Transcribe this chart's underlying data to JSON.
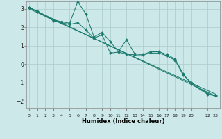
{
  "title": "",
  "xlabel": "Humidex (Indice chaleur)",
  "bg_color": "#cce8e8",
  "line_color": "#1a7a6e",
  "grid_color": "#aacccc",
  "x_tick_labels": [
    "0",
    "1",
    "2",
    "3",
    "4",
    "5",
    "6",
    "7",
    "8",
    "9",
    "10",
    "11",
    "12",
    "13",
    "14",
    "15",
    "16",
    "17",
    "18",
    "19",
    "20",
    "",
    "22",
    "23"
  ],
  "ylim": [
    -2.4,
    3.4
  ],
  "xlim": [
    -0.3,
    23.5
  ],
  "yticks": [
    -2,
    -1,
    0,
    1,
    2,
    3
  ],
  "line1_x": [
    0,
    1,
    3,
    4,
    5,
    6,
    7,
    8,
    9,
    10,
    11,
    12,
    13,
    14,
    15,
    16,
    17,
    18,
    19,
    20,
    22,
    23
  ],
  "line1_y": [
    3.07,
    2.87,
    2.4,
    2.3,
    2.22,
    3.38,
    2.72,
    1.47,
    1.72,
    1.22,
    0.67,
    1.32,
    0.57,
    0.52,
    0.67,
    0.67,
    0.52,
    0.27,
    -0.53,
    -1.08,
    -1.63,
    -1.73
  ],
  "line2_x": [
    0,
    1,
    3,
    4,
    5,
    6,
    7,
    8,
    9,
    10,
    11,
    12,
    13,
    14,
    15,
    16,
    17,
    18,
    19,
    20,
    22,
    23
  ],
  "line2_y": [
    3.05,
    2.85,
    2.35,
    2.25,
    2.15,
    2.25,
    1.85,
    1.4,
    1.6,
    0.6,
    0.65,
    0.55,
    0.5,
    0.5,
    0.6,
    0.6,
    0.45,
    0.2,
    -0.6,
    -1.0,
    -1.6,
    -1.7
  ],
  "trend1_x": [
    0,
    23
  ],
  "trend1_y": [
    3.07,
    -1.73
  ],
  "trend2_x": [
    0,
    23
  ],
  "trend2_y": [
    3.0,
    -1.63
  ]
}
